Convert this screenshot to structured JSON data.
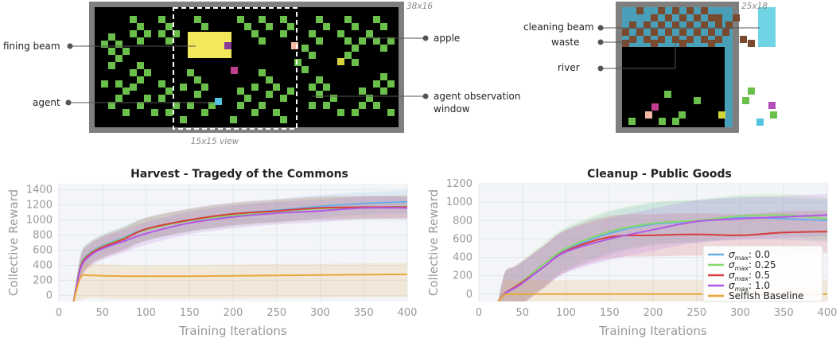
{
  "harvest_env": {
    "size_label": "38x16",
    "view_label": "15x15 view",
    "annotations": {
      "fining_beam": "fining beam",
      "agent": "agent",
      "apple": "apple",
      "observation_1": "agent observation",
      "observation_2": "window"
    }
  },
  "cleanup_env": {
    "size_label": "25x18",
    "annotations": {
      "cleaning_beam": "cleaning beam",
      "waste": "waste",
      "river": "river"
    }
  },
  "colors": {
    "sigma_0": "#6aaee8",
    "sigma_025": "#86d86b",
    "sigma_05": "#d63c3c",
    "sigma_1": "#b158e6",
    "selfish": "#e9a63a",
    "grid_bg": "#f3f5f8"
  },
  "legend": {
    "entries": [
      {
        "symbol": "σ",
        "sub": "max",
        "suffix": ": 0.0",
        "color_key": "sigma_0"
      },
      {
        "symbol": "σ",
        "sub": "max",
        "suffix": ": 0.25",
        "color_key": "sigma_025"
      },
      {
        "symbol": "σ",
        "sub": "max",
        "suffix": ": 0.5",
        "color_key": "sigma_05"
      },
      {
        "symbol": "σ",
        "sub": "max",
        "suffix": ": 1.0",
        "color_key": "sigma_1"
      },
      {
        "symbol": "",
        "sub": "",
        "suffix": "Selfish Baseline",
        "color_key": "selfish"
      }
    ]
  },
  "chart_data": [
    {
      "type": "line",
      "title": "Harvest - Tragedy of the Commons",
      "xlabel": "Training Iterations",
      "ylabel": "Collective Reward",
      "xlim": [
        0,
        400
      ],
      "ylim": [
        -80,
        1480
      ],
      "xticks": [
        0,
        50,
        100,
        150,
        200,
        250,
        300,
        350,
        400
      ],
      "yticks": [
        0,
        200,
        400,
        600,
        800,
        1000,
        1200,
        1400
      ],
      "x": [
        17,
        25,
        35,
        50,
        75,
        100,
        150,
        200,
        250,
        300,
        350,
        400
      ],
      "series": [
        {
          "color_key": "sigma_0",
          "values": [
            -80,
            400,
            560,
            660,
            770,
            880,
            1000,
            1080,
            1130,
            1180,
            1220,
            1240
          ]
        },
        {
          "color_key": "sigma_025",
          "values": [
            -80,
            390,
            550,
            650,
            760,
            870,
            990,
            1060,
            1110,
            1150,
            1160,
            1180
          ]
        },
        {
          "color_key": "sigma_05",
          "values": [
            -80,
            380,
            540,
            640,
            750,
            880,
            1000,
            1080,
            1120,
            1160,
            1170,
            1170
          ]
        },
        {
          "color_key": "sigma_1",
          "values": [
            -80,
            360,
            520,
            620,
            720,
            820,
            960,
            1040,
            1090,
            1120,
            1160,
            1160
          ]
        },
        {
          "color_key": "selfish",
          "values": [
            -80,
            240,
            265,
            262,
            255,
            255,
            255,
            260,
            265,
            270,
            275,
            280
          ]
        }
      ]
    },
    {
      "type": "line",
      "title": "Cleanup - Public Goods",
      "xlabel": "Training Iterations",
      "ylabel": "Collective Reward",
      "xlim": [
        0,
        400
      ],
      "ylim": [
        -80,
        1200
      ],
      "xticks": [
        0,
        50,
        100,
        150,
        200,
        250,
        300,
        350,
        400
      ],
      "yticks": [
        0,
        200,
        400,
        600,
        800,
        1000,
        1200
      ],
      "x": [
        22,
        30,
        40,
        50,
        75,
        100,
        150,
        200,
        250,
        300,
        350,
        400
      ],
      "series": [
        {
          "color_key": "sigma_0",
          "values": [
            -80,
            0,
            60,
            120,
            300,
            480,
            660,
            760,
            790,
            830,
            820,
            800
          ]
        },
        {
          "color_key": "sigma_025",
          "values": [
            -80,
            10,
            70,
            140,
            330,
            500,
            680,
            770,
            800,
            850,
            860,
            820
          ]
        },
        {
          "color_key": "sigma_05",
          "values": [
            -80,
            10,
            70,
            130,
            300,
            470,
            620,
            640,
            650,
            640,
            670,
            680
          ]
        },
        {
          "color_key": "sigma_1",
          "values": [
            -80,
            10,
            60,
            120,
            300,
            460,
            600,
            700,
            790,
            820,
            840,
            860
          ]
        },
        {
          "color_key": "selfish",
          "values": [
            -80,
            -5,
            0,
            0,
            0,
            0,
            0,
            0,
            0,
            0,
            0,
            0
          ]
        }
      ]
    }
  ]
}
